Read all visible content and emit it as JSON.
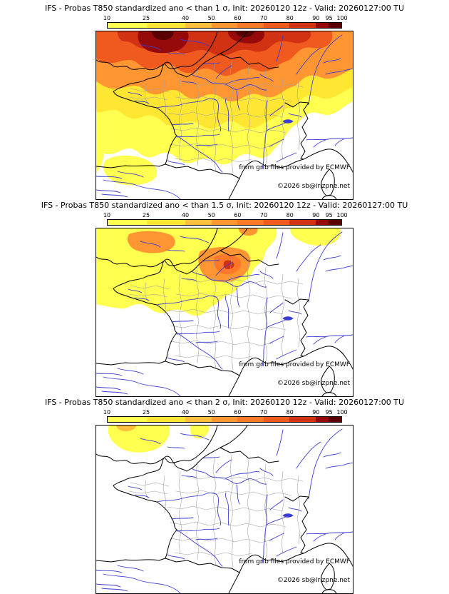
{
  "panels": [
    {
      "threshold_sigma": "1",
      "title": "IFS - Probas T850  standardized ano < than 1 σ, Init: 20260120 12z - Valid: 20260127:00 TU"
    },
    {
      "threshold_sigma": "1.5",
      "title": "IFS - Probas T850  standardized ano < than 1.5 σ, Init: 20260120 12z - Valid: 20260127:00 TU"
    },
    {
      "threshold_sigma": "2",
      "title": "IFS - Probas T850  standardized ano < than 2 σ, Init: 20260120 12z - Valid: 20260127:00 TU"
    }
  ],
  "colorbar": {
    "tick_values": [
      10,
      25,
      40,
      50,
      60,
      70,
      80,
      90,
      95,
      100
    ],
    "segment_colors": [
      "#FFFF50",
      "#FFE632",
      "#FFBE3C",
      "#FF9632",
      "#FF7828",
      "#F05A1E",
      "#D23214",
      "#960A0A",
      "#5A0000"
    ]
  },
  "credits": {
    "provider": "from grib files provided by ECMWF",
    "copyright": "©2026 sb@irizpne.net"
  },
  "map_colors": {
    "river": "#3C3CD2",
    "department_boundary": "#A0A0A0",
    "coastline": "#000000"
  }
}
